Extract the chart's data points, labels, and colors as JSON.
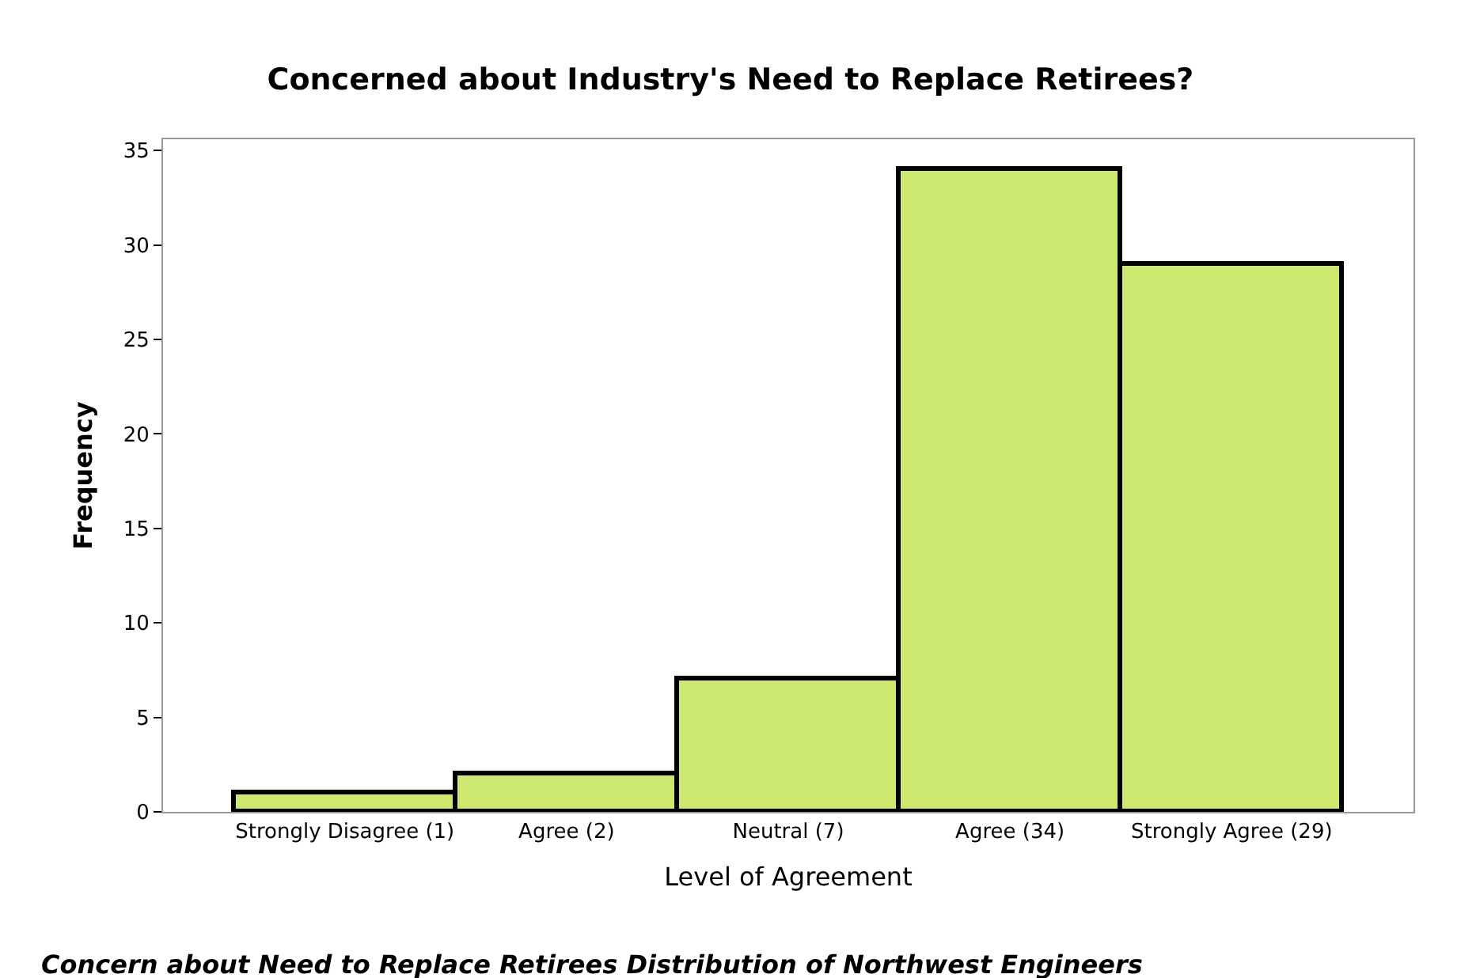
{
  "chart_data": {
    "type": "bar",
    "title": "Concerned about Industry's Need to Replace Retirees?",
    "xlabel": "Level of Agreement",
    "ylabel": "Frequency",
    "categories": [
      "Strongly Disagree (1)",
      "Agree (2)",
      "Neutral (7)",
      "Agree (34)",
      "Strongly Agree (29)"
    ],
    "values": [
      1,
      2,
      7,
      34,
      29
    ],
    "color": "#cce86f",
    "ylim": [
      0,
      35.6
    ],
    "yticks": [
      0,
      5,
      10,
      15,
      20,
      25,
      30,
      35
    ],
    "legend": false,
    "annotations": [
      "Concern about Need to Replace Retirees Distribution of Northwest Engineers"
    ]
  }
}
